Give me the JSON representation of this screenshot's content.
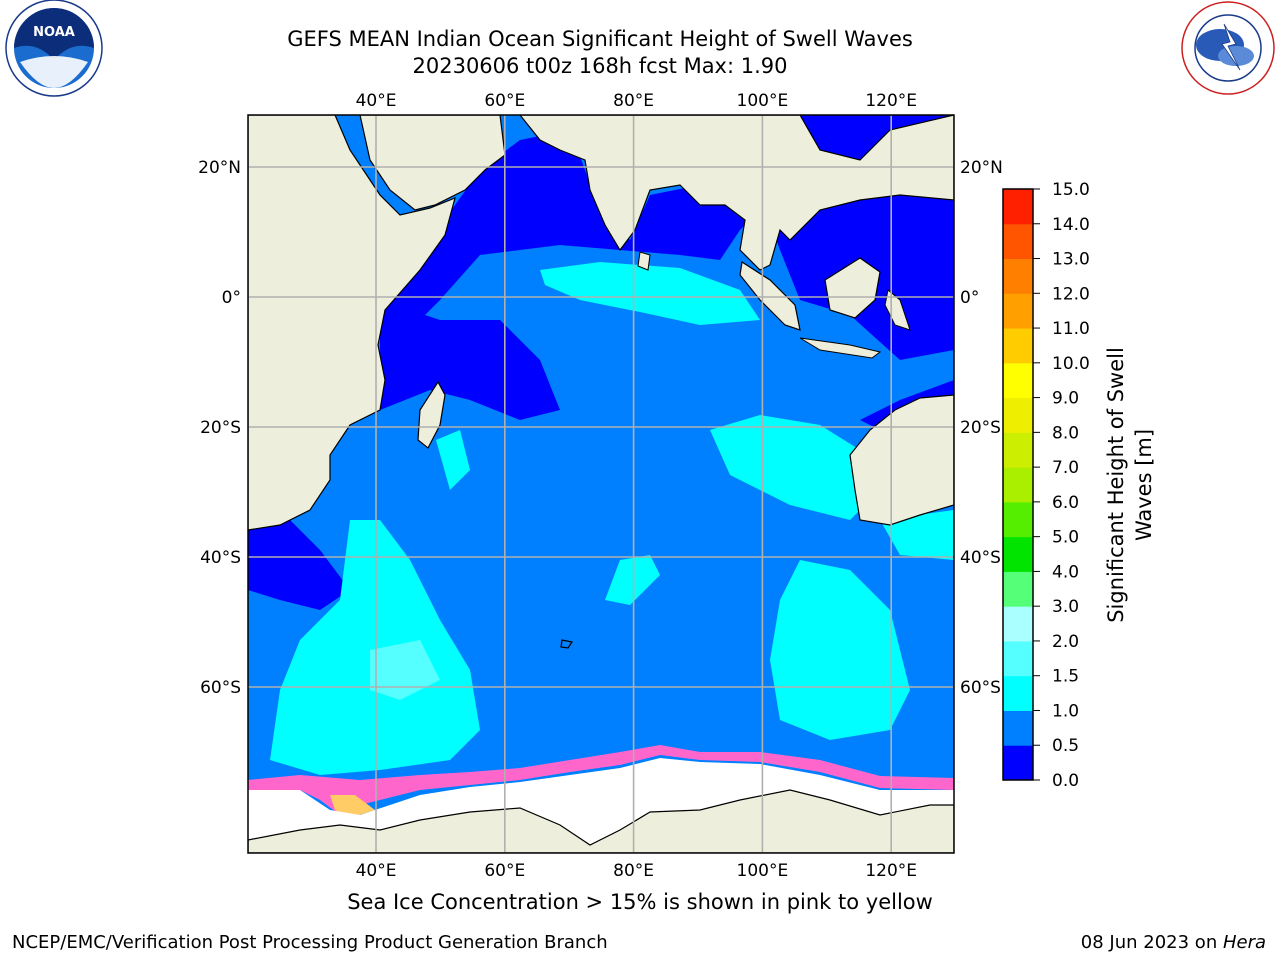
{
  "title": {
    "line1": "GEFS MEAN Indian Ocean Significant Height of Swell Waves",
    "line2": "20230606 t00z 168h fcst   Max: 1.90"
  },
  "logos": {
    "left": "NOAA",
    "right": "NATIONAL WEATHER SERVICE"
  },
  "map": {
    "lon_ticks": [
      {
        "lon": 40,
        "label": "40°E"
      },
      {
        "lon": 60,
        "label": "60°E"
      },
      {
        "lon": 80,
        "label": "80°E"
      },
      {
        "lon": 100,
        "label": "100°E"
      },
      {
        "lon": 120,
        "label": "120°E"
      }
    ],
    "lat_ticks": [
      {
        "lat": 20,
        "label": "20°N"
      },
      {
        "lat": 0,
        "label": "0°"
      },
      {
        "lat": -20,
        "label": "20°S"
      },
      {
        "lat": -40,
        "label": "40°S"
      },
      {
        "lat": -60,
        "label": "60°S"
      }
    ],
    "colors": {
      "land": "#eeeedc",
      "ice": "#ffffff",
      "grid": "#b0b0b0",
      "coast": "#000000",
      "ice_edge": "#ff66cc"
    }
  },
  "colorbar": {
    "label_line1": "Significant Height of Swell",
    "label_line2": "Waves [m]",
    "levels": [
      "0.0",
      "0.5",
      "1.0",
      "1.5",
      "2.0",
      "3.0",
      "4.0",
      "5.0",
      "6.0",
      "7.0",
      "8.0",
      "9.0",
      "10.0",
      "11.0",
      "12.0",
      "13.0",
      "14.0",
      "15.0"
    ],
    "colors": [
      "#0000ff",
      "#0080ff",
      "#00ffff",
      "#55ffff",
      "#aaffff",
      "#55ff77",
      "#00e400",
      "#55ee00",
      "#aaee00",
      "#ccee00",
      "#eeee00",
      "#ffff00",
      "#ffcc00",
      "#ffa000",
      "#ff8000",
      "#ff5500",
      "#ff2000"
    ]
  },
  "note": "Sea Ice Concentration > 15% is shown in pink to yellow",
  "footer": {
    "left": "NCEP/EMC/Verification Post Processing Product Generation Branch",
    "right_date": "08 Jun 2023 on ",
    "right_host": "Hera"
  }
}
